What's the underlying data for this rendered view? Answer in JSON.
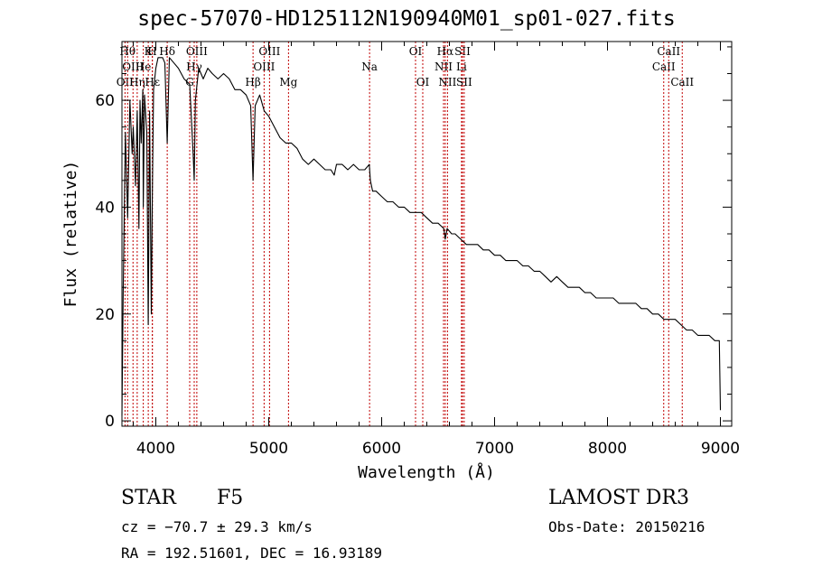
{
  "chart_data": {
    "type": "line",
    "title": "spec-57070-HD125112N190940M01_sp01-027.fits",
    "xlabel": "Wavelength (Å)",
    "ylabel": "Flux (relative)",
    "xlim": [
      3700,
      9100
    ],
    "ylim": [
      -1,
      71
    ],
    "xticks": [
      4000,
      5000,
      6000,
      7000,
      8000,
      9000
    ],
    "yticks": [
      0,
      20,
      40,
      60
    ],
    "grid": false,
    "series": [
      {
        "name": "spectrum",
        "x": [
          3700,
          3710,
          3730,
          3750,
          3770,
          3790,
          3800,
          3820,
          3835,
          3850,
          3860,
          3870,
          3885,
          3889,
          3900,
          3920,
          3933,
          3945,
          3960,
          3968,
          3980,
          4000,
          4020,
          4060,
          4080,
          4101,
          4120,
          4160,
          4200,
          4250,
          4300,
          4330,
          4340,
          4350,
          4380,
          4420,
          4460,
          4500,
          4550,
          4600,
          4650,
          4700,
          4750,
          4800,
          4840,
          4861,
          4880,
          4920,
          4960,
          5000,
          5050,
          5100,
          5150,
          5200,
          5250,
          5300,
          5350,
          5400,
          5450,
          5500,
          5550,
          5580,
          5600,
          5650,
          5700,
          5750,
          5800,
          5850,
          5890,
          5900,
          5920,
          5950,
          6000,
          6050,
          6100,
          6150,
          6200,
          6250,
          6300,
          6350,
          6400,
          6450,
          6500,
          6550,
          6563,
          6580,
          6620,
          6650,
          6700,
          6750,
          6800,
          6850,
          6900,
          6950,
          7000,
          7050,
          7100,
          7150,
          7200,
          7250,
          7300,
          7350,
          7400,
          7450,
          7500,
          7550,
          7600,
          7650,
          7700,
          7750,
          7800,
          7850,
          7900,
          7950,
          8000,
          8050,
          8100,
          8150,
          8200,
          8250,
          8300,
          8350,
          8400,
          8450,
          8500,
          8550,
          8600,
          8650,
          8700,
          8750,
          8800,
          8850,
          8900,
          8950,
          8990,
          9000
        ],
        "y": [
          1,
          23,
          54,
          38,
          60,
          50,
          55,
          44,
          58,
          36,
          60,
          52,
          62,
          40,
          61,
          54,
          18,
          58,
          20,
          40,
          62,
          66,
          68,
          68,
          67,
          52,
          68,
          67,
          66,
          64,
          63,
          50,
          45,
          60,
          66,
          64,
          66,
          65,
          64,
          65,
          64,
          62,
          62,
          61,
          59,
          45,
          59,
          61,
          58,
          57,
          55,
          53,
          52,
          52,
          51,
          49,
          48,
          49,
          48,
          47,
          47,
          46,
          48,
          48,
          47,
          48,
          47,
          47,
          48,
          45,
          43,
          43,
          42,
          41,
          41,
          40,
          40,
          39,
          39,
          39,
          38,
          37,
          37,
          36,
          34,
          36,
          35,
          35,
          34,
          33,
          33,
          33,
          32,
          32,
          31,
          31,
          30,
          30,
          30,
          29,
          29,
          28,
          28,
          27,
          26,
          27,
          26,
          25,
          25,
          25,
          24,
          24,
          23,
          23,
          23,
          23,
          22,
          22,
          22,
          22,
          21,
          21,
          20,
          20,
          19,
          19,
          19,
          18,
          17,
          17,
          16,
          16,
          16,
          15,
          15,
          2
        ]
      }
    ],
    "lines": [
      {
        "wl": 3727,
        "label": "OII",
        "row": 3
      },
      {
        "wl": 3750,
        "label": "Hθ",
        "row": 1
      },
      {
        "wl": 3798,
        "label": "OIII",
        "row": 2
      },
      {
        "wl": 3835,
        "label": "Hη",
        "row": 3
      },
      {
        "wl": 3889,
        "label": "He",
        "row": 2
      },
      {
        "wl": 3933,
        "label": "K",
        "row": 1
      },
      {
        "wl": 3968,
        "label": "H",
        "row": 1
      },
      {
        "wl": 3970,
        "label": "Hε",
        "row": 3
      },
      {
        "wl": 4101,
        "label": "Hδ",
        "row": 1
      },
      {
        "wl": 4300,
        "label": "G",
        "row": 3
      },
      {
        "wl": 4340,
        "label": "Hγ",
        "row": 2
      },
      {
        "wl": 4363,
        "label": "OIII",
        "row": 1
      },
      {
        "wl": 4861,
        "label": "Hβ",
        "row": 3
      },
      {
        "wl": 4959,
        "label": "OIII",
        "row": 2
      },
      {
        "wl": 5007,
        "label": "OIII",
        "row": 1
      },
      {
        "wl": 5175,
        "label": "Mg",
        "row": 3
      },
      {
        "wl": 5893,
        "label": "Na",
        "row": 2
      },
      {
        "wl": 6300,
        "label": "OI",
        "row": 1
      },
      {
        "wl": 6364,
        "label": "OI",
        "row": 3
      },
      {
        "wl": 6548,
        "label": "NII",
        "row": 2
      },
      {
        "wl": 6563,
        "label": "Hα",
        "row": 1
      },
      {
        "wl": 6583,
        "label": "NII",
        "row": 3
      },
      {
        "wl": 6707,
        "label": "Li",
        "row": 2
      },
      {
        "wl": 6716,
        "label": "SII",
        "row": 1
      },
      {
        "wl": 6731,
        "label": "SII",
        "row": 3
      },
      {
        "wl": 8498,
        "label": "CaII",
        "row": 2
      },
      {
        "wl": 8542,
        "label": "CaII",
        "row": 1
      },
      {
        "wl": 8662,
        "label": "CaII",
        "row": 3
      }
    ]
  },
  "info": {
    "class_label": "STAR",
    "subclass": "F5",
    "survey": "LAMOST DR3",
    "cz": "cz = −70.7 ± 29.3 km/s",
    "obs_date": "Obs-Date: 20150216",
    "coords": "RA = 192.51601, DEC =  16.93189"
  }
}
